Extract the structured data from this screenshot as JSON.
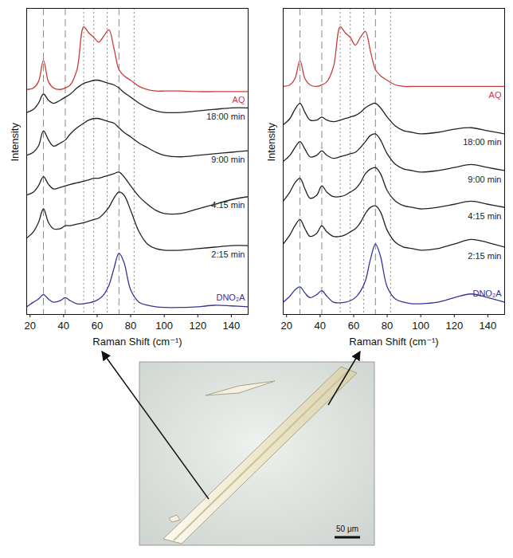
{
  "chart_data": [
    {
      "type": "line",
      "xlabel": "Raman Shift (cm⁻¹)",
      "ylabel": "Intensity",
      "xlim": [
        18,
        150
      ],
      "xticks": [
        20,
        40,
        60,
        80,
        100,
        120,
        140
      ],
      "ylim": [
        0,
        100
      ],
      "yticks": [],
      "tick_labels": "x",
      "vlines": [
        {
          "x": 28,
          "line_style": "dashed"
        },
        {
          "x": 41,
          "line_style": "dashed"
        },
        {
          "x": 73,
          "line_style": "dashed"
        },
        {
          "x": 52,
          "line_style": "dotted"
        },
        {
          "x": 58,
          "line_style": "dotted"
        },
        {
          "x": 66,
          "line_style": "dotted"
        },
        {
          "x": 82,
          "line_style": "dotted"
        }
      ],
      "x": [
        18,
        22,
        25,
        28,
        31,
        34,
        38,
        41,
        44,
        48,
        52,
        55,
        58,
        61,
        64,
        67,
        70,
        73,
        76,
        80,
        85,
        90,
        95,
        100,
        110,
        120,
        130,
        140,
        150
      ],
      "series": [
        {
          "name": "AQ",
          "color": "#c8403c",
          "values": [
            73.5,
            74,
            76,
            83,
            76,
            74,
            73.5,
            74,
            75,
            80,
            94,
            92,
            90.5,
            89,
            91,
            93,
            87,
            80,
            78,
            76.5,
            74.5,
            73.5,
            73,
            73,
            73,
            72.8,
            72.8,
            72.8,
            72.8
          ]
        },
        {
          "name": "18:00 min",
          "color": "#222222",
          "values": [
            66,
            67,
            69,
            72,
            70,
            69,
            70,
            71,
            72,
            74,
            75.5,
            76,
            76.5,
            76.5,
            76,
            75.5,
            75,
            74,
            72.5,
            71,
            69,
            67.5,
            66.5,
            66,
            66,
            66.5,
            67,
            67.5,
            67.5
          ]
        },
        {
          "name": "9:00 min",
          "color": "#222222",
          "values": [
            52,
            53,
            55,
            60,
            57,
            55,
            56,
            57,
            59,
            61,
            62.5,
            63.5,
            64,
            64,
            63.5,
            63,
            62.5,
            61,
            59.5,
            58,
            56,
            54.5,
            53,
            52,
            51.5,
            52,
            52.5,
            53,
            53.5
          ]
        },
        {
          "name": "4:15 min",
          "color": "#222222",
          "values": [
            39,
            40,
            42,
            45,
            42.5,
            41,
            41.5,
            42,
            42.5,
            43,
            43.5,
            44,
            44.5,
            44.5,
            45,
            45.5,
            46,
            46.5,
            45,
            42,
            38.5,
            36,
            34,
            33,
            33,
            34.5,
            36,
            37.5,
            38.5
          ]
        },
        {
          "name": "2:15 min",
          "color": "#222222",
          "values": [
            25,
            27,
            30,
            34.5,
            30,
            28,
            28,
            29,
            29,
            29.5,
            30,
            30.5,
            31,
            31.5,
            33,
            35,
            38,
            40,
            39,
            34,
            27,
            23,
            21.5,
            21,
            21,
            21.5,
            22,
            22.5,
            22.5
          ]
        },
        {
          "name": "DNO₂A",
          "color": "#34349a",
          "values": [
            2.5,
            4,
            5,
            6.5,
            5,
            4,
            4.5,
            5.5,
            4.5,
            3.5,
            3.5,
            3.8,
            4.2,
            5,
            6.5,
            9.5,
            15,
            20,
            17,
            8,
            4,
            3,
            2.5,
            2.3,
            2.3,
            2.5,
            3,
            2.8,
            2.5
          ]
        }
      ]
    },
    {
      "type": "line",
      "xlabel": "Raman Shift (cm⁻¹)",
      "ylabel": "Intensity",
      "xlim": [
        18,
        150
      ],
      "xticks": [
        20,
        40,
        60,
        80,
        100,
        120,
        140
      ],
      "ylim": [
        0,
        100
      ],
      "yticks": [],
      "tick_labels": "x",
      "vlines": [
        {
          "x": 28,
          "line_style": "dashed"
        },
        {
          "x": 41,
          "line_style": "dashed"
        },
        {
          "x": 73,
          "line_style": "dashed"
        },
        {
          "x": 52,
          "line_style": "dotted"
        },
        {
          "x": 58,
          "line_style": "dotted"
        },
        {
          "x": 66,
          "line_style": "dotted"
        },
        {
          "x": 82,
          "line_style": "dotted"
        }
      ],
      "x": [
        18,
        22,
        25,
        28,
        31,
        34,
        38,
        41,
        44,
        48,
        52,
        55,
        58,
        61,
        64,
        67,
        70,
        73,
        76,
        80,
        85,
        90,
        95,
        100,
        110,
        120,
        130,
        140,
        150
      ],
      "series": [
        {
          "name": "AQ",
          "color": "#c8403c",
          "values": [
            74.5,
            75,
            77,
            83,
            77,
            75,
            74.5,
            75,
            76,
            81,
            94,
            92,
            90.5,
            88,
            90.5,
            92.5,
            86,
            80,
            78,
            76.5,
            75,
            74.5,
            74.5,
            74.5,
            74.5,
            74.5,
            74.5,
            74.5,
            74.5
          ]
        },
        {
          "name": "18:00 min",
          "color": "#222222",
          "values": [
            62,
            64,
            67,
            69,
            66,
            63.5,
            63.5,
            64.5,
            63.5,
            63,
            63.5,
            64,
            64.5,
            65,
            66,
            67.5,
            68.5,
            69,
            67.5,
            64.5,
            61.5,
            60,
            59.5,
            59,
            59.5,
            60.5,
            61,
            60,
            59
          ]
        },
        {
          "name": "9:00 min",
          "color": "#222222",
          "values": [
            50,
            52,
            54.5,
            56.5,
            54,
            51.5,
            52,
            53.5,
            52,
            51,
            51.5,
            52,
            52.5,
            53,
            54.5,
            56.5,
            58.5,
            59,
            57,
            52.5,
            49,
            47.5,
            47,
            46.5,
            47,
            48,
            49,
            48,
            47
          ]
        },
        {
          "name": "4:15 min",
          "color": "#222222",
          "values": [
            37,
            40,
            43,
            44.5,
            41,
            38,
            39,
            42,
            40,
            38.5,
            38.5,
            39,
            40,
            41,
            43,
            46,
            47.5,
            48,
            46,
            40.5,
            37,
            35.5,
            35,
            34.5,
            35,
            36,
            37,
            36,
            35
          ]
        },
        {
          "name": "2:15 min",
          "color": "#222222",
          "values": [
            23,
            26,
            29,
            31,
            28,
            25.5,
            26.5,
            29,
            27,
            25.5,
            25.5,
            26,
            27,
            28,
            30,
            33,
            35,
            35.5,
            33.5,
            27.5,
            23.5,
            22,
            21.5,
            21,
            21.5,
            23,
            24.5,
            23.5,
            22
          ]
        },
        {
          "name": "DNO₂A",
          "color": "#34349a",
          "values": [
            4,
            6,
            8,
            9,
            7,
            5.5,
            6.5,
            7.8,
            6,
            4,
            3.8,
            4,
            4.5,
            5.5,
            7.5,
            11,
            18,
            23,
            19,
            9,
            5,
            4,
            3.5,
            3.5,
            4,
            5.5,
            6.7,
            5.5,
            4
          ]
        }
      ]
    }
  ],
  "image": {
    "scale_bar": "50 μm"
  }
}
